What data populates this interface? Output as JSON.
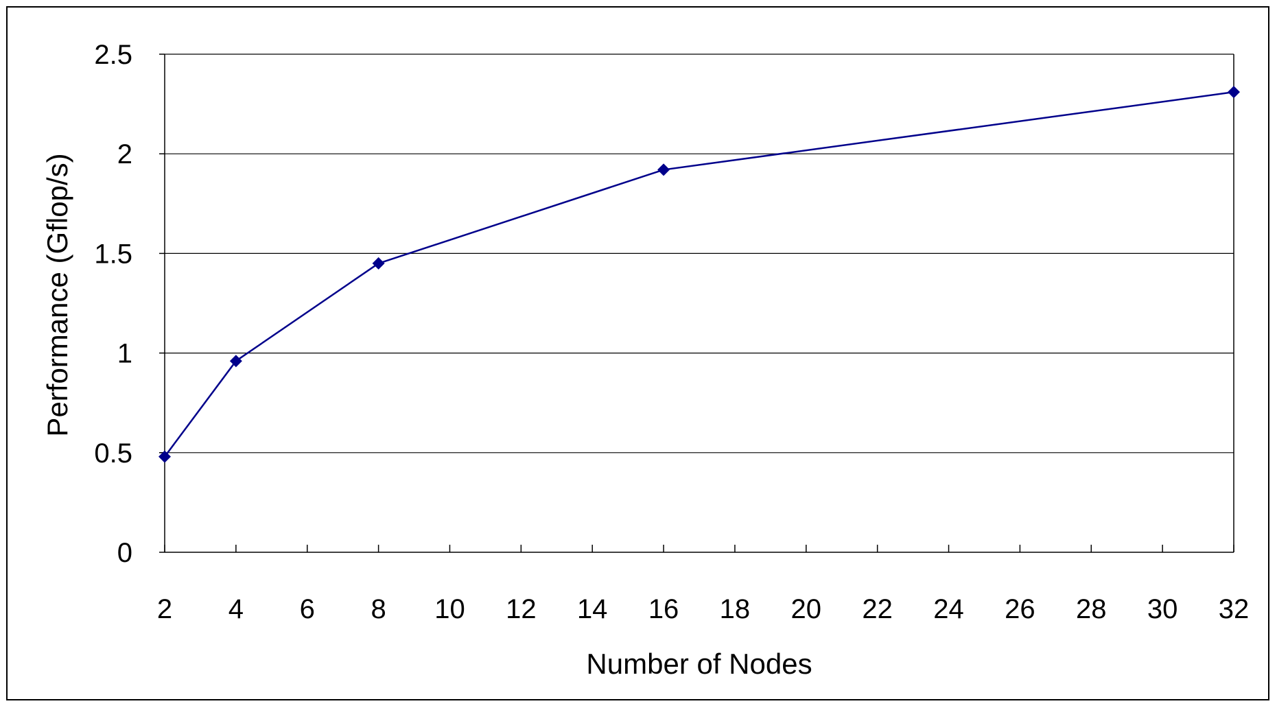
{
  "chart_data": {
    "type": "line",
    "title": "",
    "xlabel": "Number of Nodes",
    "ylabel": "Performance (Gflop/s)",
    "x_ticks": [
      2,
      4,
      6,
      8,
      10,
      12,
      14,
      16,
      18,
      20,
      22,
      24,
      26,
      28,
      30,
      32
    ],
    "x_tick_labels": [
      "2",
      "4",
      "6",
      "8",
      "10",
      "12",
      "14",
      "16",
      "18",
      "20",
      "22",
      "24",
      "26",
      "28",
      "30",
      "32"
    ],
    "y_ticks": [
      0,
      0.5,
      1,
      1.5,
      2,
      2.5
    ],
    "y_tick_labels": [
      "0",
      "0.5",
      "1",
      "1.5",
      "2",
      "2.5"
    ],
    "xlim": [
      2,
      32
    ],
    "ylim": [
      0,
      2.5
    ],
    "grid": "horizontal",
    "legend": "none",
    "marker": "diamond",
    "colors": {
      "series": "#00008B",
      "grid": "#000000",
      "axis": "#000000"
    },
    "series": [
      {
        "x": [
          2,
          4,
          8,
          16,
          32
        ],
        "y": [
          0.48,
          0.96,
          1.45,
          1.92,
          2.31
        ]
      }
    ]
  }
}
